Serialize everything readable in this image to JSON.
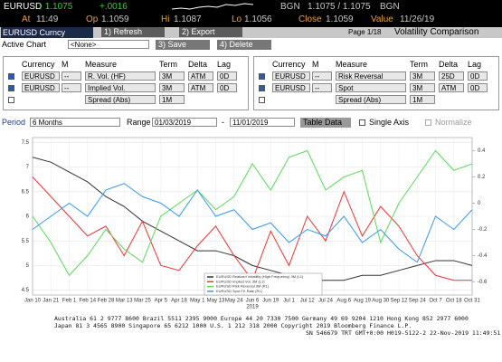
{
  "quote": {
    "ticker": "EURUSD",
    "last": "↑ 1.1075",
    "change": "+.0016",
    "src1": "BGN",
    "bidask": "1.1075 / 1.1075",
    "src2": "BGN",
    "at_label": "At",
    "at": "11:49",
    "op_label": "Op",
    "op": "1.1059",
    "hi_label": "Hi",
    "hi": "1.1087",
    "lo_label": "Lo",
    "lo": "1.1056",
    "close_label": "Close",
    "close": "1.1059",
    "value_label": "Value",
    "value": "11/26/19"
  },
  "toolbar": {
    "security": "EURUSD Curncy",
    "refresh": "1) Refresh",
    "export": "2) Export",
    "page": "Page 1/18",
    "title": "Volatility Comparison"
  },
  "chart_bar": {
    "label": "Active Chart",
    "selected": "<None>",
    "save": "3) Save",
    "delete": "4) Delete"
  },
  "panels": [
    {
      "headers": [
        "Currency",
        "M",
        "Measure",
        "Term",
        "Delta",
        "Lag"
      ],
      "rows": [
        {
          "currency": "EURUSD",
          "m": "--",
          "measure": "R. Vol. (HF)",
          "term": "3M",
          "delta": "ATM",
          "lag": "0D"
        },
        {
          "currency": "EURUSD",
          "m": "--",
          "measure": "Implied Vol.",
          "term": "3M",
          "delta": "ATM",
          "lag": "0D"
        },
        {
          "measure": "Spread (Abs)",
          "term": "1M"
        }
      ]
    },
    {
      "headers": [
        "Currency",
        "M",
        "Measure",
        "Term",
        "Delta",
        "Lag"
      ],
      "rows": [
        {
          "currency": "EURUSD",
          "m": "--",
          "measure": "Risk Reversal",
          "term": "3M",
          "delta": "25D",
          "lag": "0D"
        },
        {
          "currency": "EURUSD",
          "m": "--",
          "measure": "Spot",
          "term": "3M",
          "delta": "ATM",
          "lag": "0D"
        },
        {
          "measure": "Spread (Abs)",
          "term": "1M"
        }
      ]
    }
  ],
  "period": {
    "label": "Period",
    "value": "6 Months",
    "range_label": "Range",
    "start": "01/03/2019",
    "sep": "-",
    "end": "11/01/2019",
    "table": "Table Data",
    "single_axis": "Single Axis",
    "normalize": "Normalize"
  },
  "chart_data": {
    "type": "line",
    "categories": [
      "Jan 10",
      "Jan 21",
      "Feb 1",
      "Feb 14",
      "Feb 28",
      "Mar 13",
      "Mar 25",
      "Apr 5",
      "Apr 18",
      "May 1",
      "May 13",
      "May 24",
      "Jun 6",
      "Jun 19",
      "Jul 1",
      "Jul 12",
      "Jul 24",
      "Aug 6",
      "Aug 19",
      "Aug 30",
      "Sep 12",
      "Sep 24",
      "Oct 7",
      "Oct 18",
      "Oct 31"
    ],
    "xlabel": "2019",
    "ylim": [
      4.4,
      7.6
    ],
    "yticks": [
      4.5,
      5,
      5.5,
      6,
      6.5,
      7,
      7.5
    ],
    "y2lim": [
      -0.7,
      0.5
    ],
    "y2ticks": [
      -0.6,
      -0.4,
      -0.2,
      0,
      0.2,
      0.4
    ],
    "grid": true,
    "series": [
      {
        "name": "EURUSD Realized Volatility (High Frequency) 3M (L1)",
        "color": "#333333",
        "values": [
          7.2,
          7.1,
          6.9,
          6.7,
          6.4,
          6.2,
          5.9,
          5.7,
          5.5,
          5.3,
          5.3,
          5.2,
          5.0,
          4.9,
          4.8,
          4.7,
          4.7,
          4.7,
          4.8,
          4.8,
          4.9,
          5.0,
          5.1,
          5.1,
          5.0
        ]
      },
      {
        "name": "EURUSD Implied Vol. 3M (L1)",
        "color": "#ee3333",
        "values": [
          6.8,
          6.4,
          6.0,
          5.6,
          5.8,
          5.2,
          5.9,
          5.0,
          4.9,
          5.4,
          5.8,
          5.2,
          4.7,
          5.7,
          5.0,
          6.0,
          5.5,
          6.5,
          5.6,
          6.2,
          5.8,
          5.2,
          4.8,
          4.7,
          4.7
        ]
      },
      {
        "name": "EURUSD Risk Reversal 3M (R1)",
        "color": "#55dd55",
        "axis": "y2",
        "values": [
          -0.1,
          -0.3,
          -0.55,
          -0.4,
          -0.2,
          -0.35,
          -0.45,
          -0.1,
          0.0,
          0.1,
          -0.05,
          0.05,
          0.3,
          0.1,
          0.35,
          0.4,
          0.1,
          0.2,
          0.25,
          -0.3,
          0.0,
          0.2,
          0.4,
          0.25,
          0.3
        ]
      },
      {
        "name": "EURUSD Spot FX Rate (R1)",
        "color": "#3399ee",
        "axis": "y2",
        "values": [
          -0.2,
          -0.1,
          0.0,
          -0.1,
          0.1,
          0.15,
          0.05,
          0.0,
          -0.1,
          0.1,
          -0.1,
          -0.05,
          -0.2,
          -0.15,
          -0.3,
          -0.2,
          -0.25,
          -0.1,
          -0.3,
          -0.2,
          -0.35,
          -0.45,
          -0.1,
          -0.2,
          -0.05
        ]
      }
    ]
  },
  "footer": {
    "lines": [
      "Australia 61 2 9777 8600 Brazil 5511 2395 9000 Europe 44 20 7330 7500 Germany 49 69 9204 1210 Hong Kong 852 2977 6000",
      "Japan 81 3 4565 8900     Singapore 65 6212 1000     U.S. 1 212 318 2000          Copyright 2019 Bloomberg Finance L.P.",
      "SN 546679 TRT  GMT+0:00 H019-5122-2 22-Nov-2019 11:49:51"
    ]
  }
}
